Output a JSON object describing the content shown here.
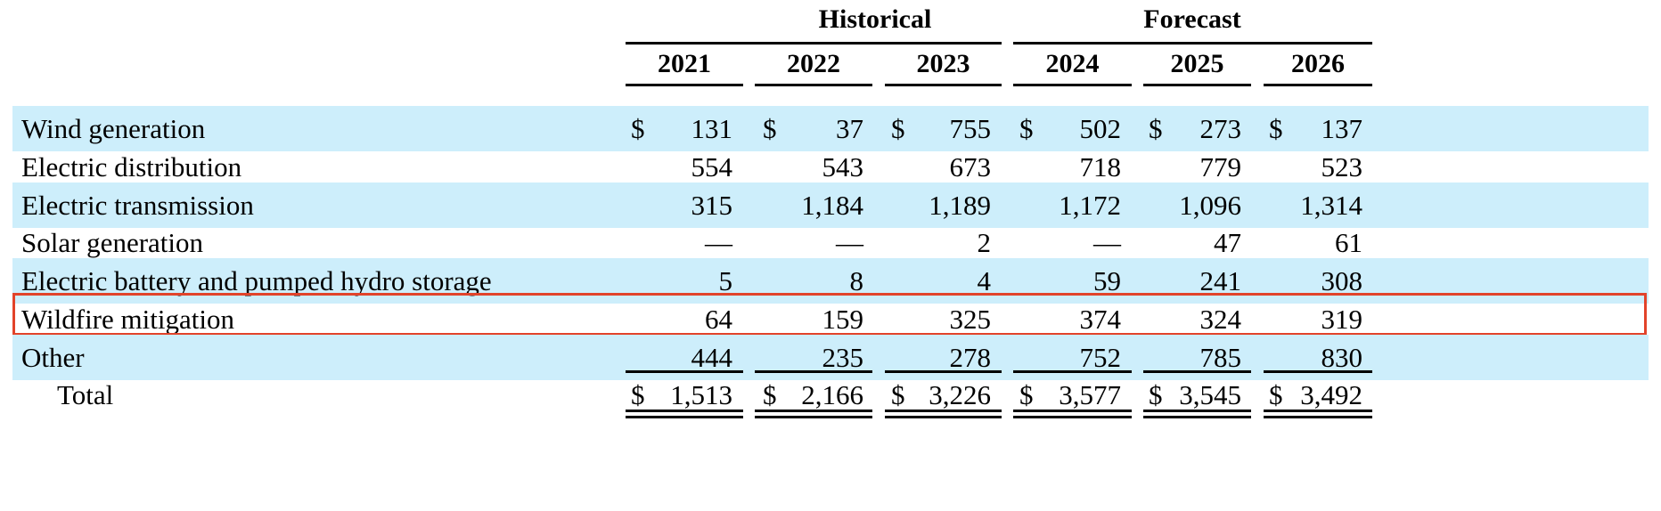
{
  "groups": {
    "historical": "Historical",
    "forecast": "Forecast"
  },
  "years": [
    "2021",
    "2022",
    "2023",
    "2024",
    "2025",
    "2026"
  ],
  "rows": [
    {
      "label": "Wind generation",
      "currency": "$",
      "values": [
        "131",
        "37",
        "755",
        "502",
        "273",
        "137"
      ]
    },
    {
      "label": "Electric distribution",
      "values": [
        "554",
        "543",
        "673",
        "718",
        "779",
        "523"
      ]
    },
    {
      "label": "Electric transmission",
      "values": [
        "315",
        "1,184",
        "1,189",
        "1,172",
        "1,096",
        "1,314"
      ]
    },
    {
      "label": "Solar generation",
      "values": [
        "—",
        "—",
        "2",
        "—",
        "47",
        "61"
      ]
    },
    {
      "label": "Electric battery and pumped hydro storage",
      "values": [
        "5",
        "8",
        "4",
        "59",
        "241",
        "308"
      ]
    },
    {
      "label": "Wildfire mitigation",
      "values": [
        "64",
        "159",
        "325",
        "374",
        "324",
        "319"
      ]
    },
    {
      "label": "Other",
      "values": [
        "444",
        "235",
        "278",
        "752",
        "785",
        "830"
      ]
    },
    {
      "label": "Total",
      "currency": "$",
      "values": [
        "1,513",
        "2,166",
        "3,226",
        "3,577",
        "3,545",
        "3,492"
      ]
    }
  ],
  "colors": {
    "row_shade": "#cdeefb",
    "highlight_border": "#e2432a"
  }
}
